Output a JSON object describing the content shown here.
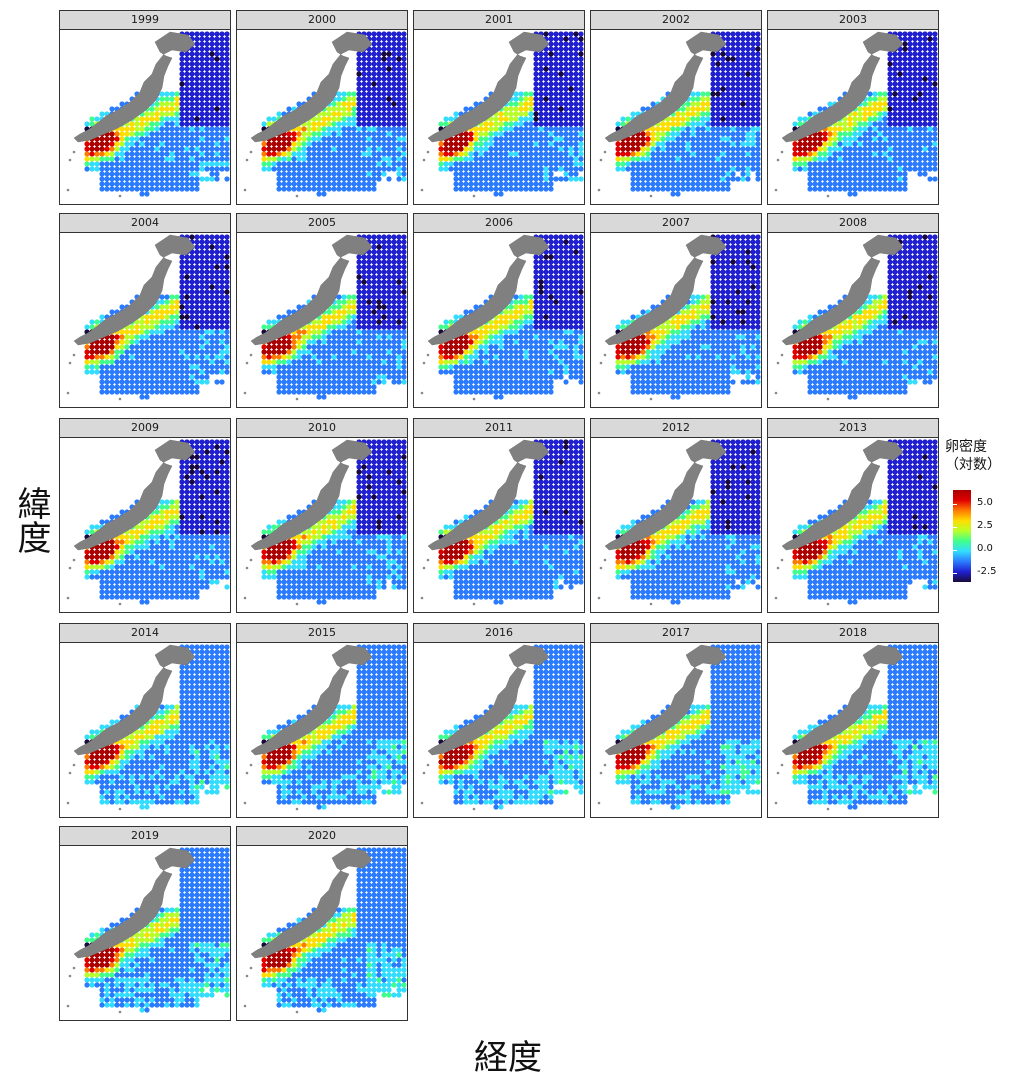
{
  "chart_data": {
    "type": "heatmap",
    "panels": [
      "1999",
      "2000",
      "2001",
      "2002",
      "2003",
      "2004",
      "2005",
      "2006",
      "2007",
      "2008",
      "2009",
      "2010",
      "2011",
      "2012",
      "2013",
      "2014",
      "2015",
      "2016",
      "2017",
      "2018",
      "2019",
      "2020"
    ],
    "xlabel": "経度",
    "ylabel": "緯度",
    "legend": {
      "title": "卵密度\n（対数）",
      "ticks": [
        "5.0",
        "2.5",
        "0.0",
        "-2.5"
      ],
      "range": [
        -3.5,
        6.5
      ],
      "placement": "right"
    },
    "colormap": [
      "#1a0a3c",
      "#2020d0",
      "#2b7bff",
      "#33ddff",
      "#3fff8c",
      "#b8ff2a",
      "#ffdd00",
      "#ff7a00",
      "#e00000",
      "#aa0000"
    ]
  },
  "colors": {
    "land": "#808080",
    "strip": "#d9d9d9",
    "border": "#333333"
  }
}
